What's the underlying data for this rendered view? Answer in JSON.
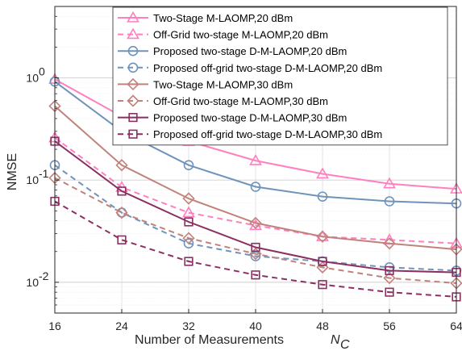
{
  "chart_data": {
    "type": "line",
    "xlabel": "Number of Measurements",
    "xlabel_symbol": "N",
    "xlabel_subscript": "C",
    "ylabel": "NMSE",
    "x": [
      16,
      24,
      32,
      40,
      48,
      56,
      64
    ],
    "xlim": [
      16,
      64
    ],
    "ylim": [
      0.005,
      5
    ],
    "yscale": "log",
    "y_ticks": [
      {
        "value": 0.01,
        "base": "10",
        "exp": "-2"
      },
      {
        "value": 0.1,
        "base": "10",
        "exp": "-1"
      },
      {
        "value": 1,
        "base": "10",
        "exp": "0"
      }
    ],
    "grid": true,
    "legend_position": "top-right",
    "series": [
      {
        "name": "Two-Stage M-LAOMP,20 dBm",
        "color": "#ff7fbf",
        "marker": "triangle",
        "dash": false,
        "values": [
          0.97,
          0.42,
          0.24,
          0.155,
          0.115,
          0.092,
          0.082
        ]
      },
      {
        "name": "Off-Grid two-stage M-LAOMP,20 dBm",
        "color": "#ff7fbf",
        "marker": "triangle",
        "dash": true,
        "values": [
          0.26,
          0.085,
          0.048,
          0.036,
          0.028,
          0.026,
          0.024
        ]
      },
      {
        "name": "Proposed two-stage D-M-LAOMP,20 dBm",
        "color": "#6f93bb",
        "marker": "circle",
        "dash": false,
        "values": [
          0.92,
          0.3,
          0.14,
          0.086,
          0.069,
          0.062,
          0.059
        ]
      },
      {
        "name": "Proposed off-grid two-stage D-M-LAOMP,20 dBm",
        "color": "#6f93bb",
        "marker": "circle",
        "dash": true,
        "values": [
          0.14,
          0.048,
          0.024,
          0.018,
          0.016,
          0.014,
          0.013
        ]
      },
      {
        "name": "Two-Stage M-LAOMP,30 dBm",
        "color": "#c0827a",
        "marker": "diamond",
        "dash": false,
        "values": [
          0.53,
          0.14,
          0.066,
          0.038,
          0.028,
          0.024,
          0.021
        ]
      },
      {
        "name": "Off-Grid two-stage M-LAOMP,30 dBm",
        "color": "#c0827a",
        "marker": "diamond",
        "dash": true,
        "values": [
          0.105,
          0.048,
          0.027,
          0.019,
          0.014,
          0.011,
          0.0098
        ]
      },
      {
        "name": "Proposed two-stage D-M-LAOMP,30 dBm",
        "color": "#8c2f62",
        "marker": "square",
        "dash": false,
        "values": [
          0.24,
          0.078,
          0.039,
          0.022,
          0.016,
          0.013,
          0.0125
        ]
      },
      {
        "name": "Proposed off-grid two-stage D-M-LAOMP,30 dBm",
        "color": "#8c2f62",
        "marker": "square",
        "dash": true,
        "values": [
          0.062,
          0.026,
          0.016,
          0.0118,
          0.0095,
          0.008,
          0.0072
        ]
      }
    ]
  }
}
